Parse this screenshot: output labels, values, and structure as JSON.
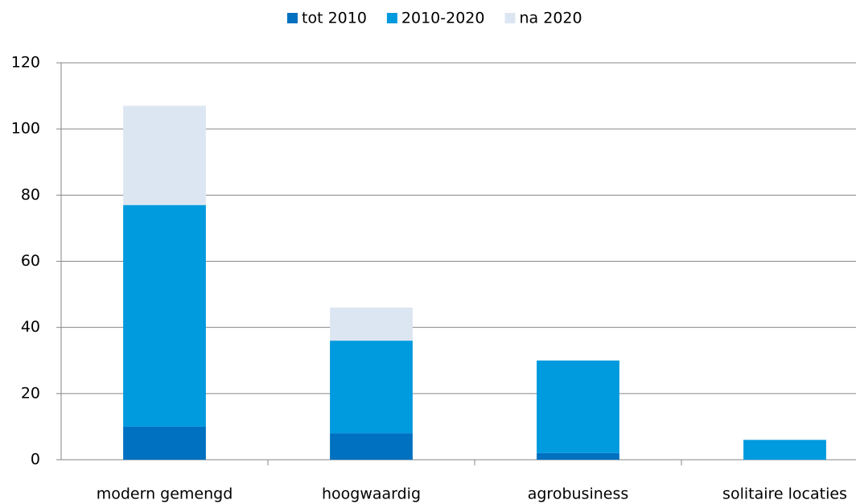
{
  "chart_data": {
    "type": "stacked-bar",
    "categories": [
      "modern gemengd",
      "hoogwaardig",
      "agrobusiness",
      "solitaire locaties"
    ],
    "series": [
      {
        "name": "tot 2010",
        "color": "#0070c0",
        "values": [
          10,
          8,
          2,
          0
        ]
      },
      {
        "name": "2010-2020",
        "color": "#009ade",
        "values": [
          67,
          28,
          28,
          6
        ]
      },
      {
        "name": "na 2020",
        "color": "#dce6f2",
        "values": [
          30,
          10,
          0,
          0
        ]
      }
    ],
    "ylim": [
      0,
      120
    ],
    "yticks": [
      0,
      20,
      40,
      60,
      80,
      100,
      120
    ],
    "grid": true,
    "legend": "top"
  }
}
